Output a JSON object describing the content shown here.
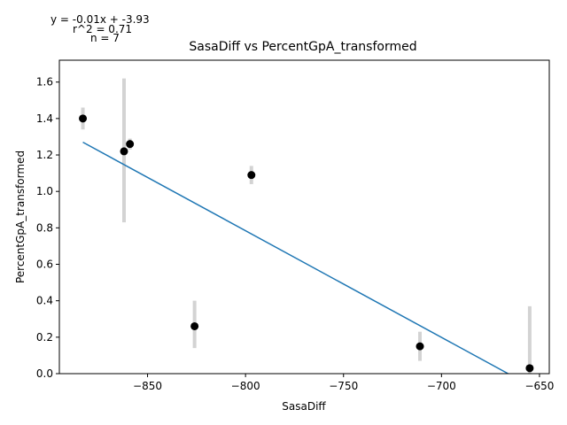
{
  "chart_data": {
    "type": "scatter",
    "title": "SasaDiff vs PercentGpA_transformed",
    "xlabel": "SasaDiff",
    "ylabel": "PercentGpA_transformed",
    "xlim": [
      -895,
      -645
    ],
    "ylim": [
      0,
      1.72
    ],
    "x_ticks": [
      -850,
      -800,
      -750,
      -700,
      -650
    ],
    "x_tick_labels": [
      "−850",
      "−800",
      "−750",
      "−700",
      "−650"
    ],
    "y_ticks": [
      0.0,
      0.2,
      0.4,
      0.6,
      0.8,
      1.0,
      1.2,
      1.4,
      1.6
    ],
    "y_tick_labels": [
      "0.0",
      "0.2",
      "0.4",
      "0.6",
      "0.8",
      "1.0",
      "1.2",
      "1.4",
      "1.6"
    ],
    "points": [
      {
        "x": -883,
        "y": 1.4,
        "err_low": 1.34,
        "err_high": 1.46
      },
      {
        "x": -862,
        "y": 1.22,
        "err_low": 0.83,
        "err_high": 1.62
      },
      {
        "x": -859,
        "y": 1.26,
        "err_low": 1.23,
        "err_high": 1.29
      },
      {
        "x": -826,
        "y": 0.26,
        "err_low": 0.14,
        "err_high": 0.4
      },
      {
        "x": -797,
        "y": 1.09,
        "err_low": 1.04,
        "err_high": 1.14
      },
      {
        "x": -711,
        "y": 0.15,
        "err_low": 0.07,
        "err_high": 0.23
      },
      {
        "x": -655,
        "y": 0.03,
        "err_low": 0.0,
        "err_high": 0.37
      }
    ],
    "fit_line": {
      "x": [
        -883,
        -666
      ],
      "y": [
        1.27,
        0.0
      ]
    },
    "annotations": {
      "equation": "y = -0.01x + -3.93",
      "r2": "r^2 = 0.71",
      "n": "n = 7"
    },
    "grid": false,
    "colors": {
      "points": "#000000",
      "error_bars": "#d3d3d3",
      "fit_line": "#1f77b4"
    }
  }
}
